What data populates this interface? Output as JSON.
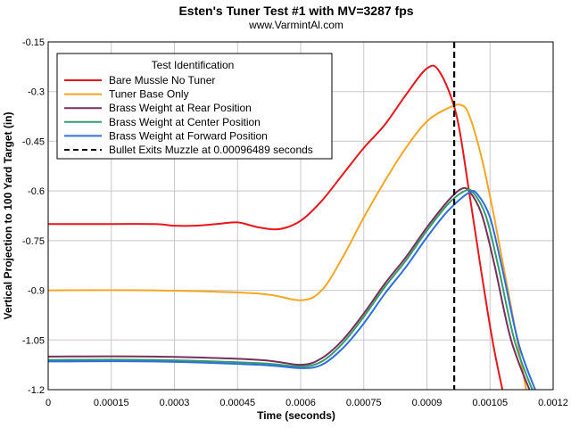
{
  "chart_data": {
    "type": "line",
    "title": "Esten's Tuner Test #1 with MV=3287 fps",
    "subtitle": "www.VarmintAl.com",
    "xlabel": "Time (seconds)",
    "ylabel": "Vertical Projection to 100 Yard Target (in)",
    "xlim": [
      0,
      0.0012
    ],
    "ylim": [
      -1.2,
      -0.15
    ],
    "x_ticks": [
      "0",
      "0.00015",
      "0.0003",
      "0.00045",
      "0.0006",
      "0.00075",
      "0.0009",
      "0.00105",
      "0.0012"
    ],
    "x_tick_values": [
      0,
      0.00015,
      0.0003,
      0.00045,
      0.0006,
      0.00075,
      0.0009,
      0.00105,
      0.0012
    ],
    "y_ticks": [
      "-0.15",
      "-0.3",
      "-0.45",
      "-0.6",
      "-0.75",
      "-0.9",
      "-1.05",
      "-1.2"
    ],
    "y_tick_values": [
      -0.15,
      -0.3,
      -0.45,
      -0.6,
      -0.75,
      -0.9,
      -1.05,
      -1.2
    ],
    "grid": true,
    "legend": {
      "title": "Test Identification",
      "placement": "top-left"
    },
    "series": [
      {
        "name": "Bare Mussle No Tuner",
        "color": "#e8161b",
        "x": [
          0,
          0.0001,
          0.00025,
          0.0003,
          0.00035,
          0.0004,
          0.00045,
          0.0005,
          0.00055,
          0.0006,
          0.00065,
          0.0007,
          0.00075,
          0.0008,
          0.00085,
          0.0009,
          0.00093,
          0.00097,
          0.001,
          0.00103,
          0.00106,
          0.0011
        ],
        "y": [
          -0.7,
          -0.7,
          -0.7,
          -0.705,
          -0.705,
          -0.7,
          -0.695,
          -0.71,
          -0.715,
          -0.69,
          -0.63,
          -0.55,
          -0.47,
          -0.4,
          -0.31,
          -0.23,
          -0.24,
          -0.37,
          -0.6,
          -0.85,
          -1.08,
          -1.32
        ]
      },
      {
        "name": "Tuner Base Only",
        "color": "#f5a623",
        "x": [
          0,
          0.00025,
          0.0005,
          0.0006,
          0.00065,
          0.0007,
          0.00075,
          0.0008,
          0.00085,
          0.0009,
          0.00095,
          0.00098,
          0.001,
          0.00103,
          0.00106,
          0.0011,
          0.00115
        ],
        "y": [
          -0.9,
          -0.9,
          -0.91,
          -0.93,
          -0.9,
          -0.8,
          -0.68,
          -0.57,
          -0.47,
          -0.39,
          -0.35,
          -0.34,
          -0.37,
          -0.5,
          -0.68,
          -0.95,
          -1.3
        ]
      },
      {
        "name": "Brass Weight at Rear Position",
        "color": "#7a2e5a",
        "x": [
          0,
          0.00025,
          0.0005,
          0.0006,
          0.00065,
          0.0007,
          0.00075,
          0.0008,
          0.00085,
          0.0009,
          0.00095,
          0.00098,
          0.001,
          0.00103,
          0.00106,
          0.0011,
          0.00115
        ],
        "y": [
          -1.1,
          -1.1,
          -1.11,
          -1.125,
          -1.105,
          -1.05,
          -0.97,
          -0.88,
          -0.8,
          -0.71,
          -0.63,
          -0.595,
          -0.6,
          -0.67,
          -0.82,
          -1.05,
          -1.22
        ]
      },
      {
        "name": "Brass Weight at Center Position",
        "color": "#2e9e6b",
        "x": [
          0,
          0.00025,
          0.0005,
          0.0006,
          0.00065,
          0.0007,
          0.00075,
          0.0008,
          0.00085,
          0.0009,
          0.00095,
          0.00099,
          0.00101,
          0.00104,
          0.00107,
          0.00111,
          0.00116
        ],
        "y": [
          -1.11,
          -1.11,
          -1.12,
          -1.13,
          -1.115,
          -1.06,
          -0.98,
          -0.89,
          -0.81,
          -0.72,
          -0.64,
          -0.6,
          -0.605,
          -0.675,
          -0.83,
          -1.06,
          -1.23
        ]
      },
      {
        "name": "Brass Weight at Forward Position",
        "color": "#2f6ee0",
        "x": [
          0,
          0.00025,
          0.0005,
          0.0006,
          0.00065,
          0.0007,
          0.00075,
          0.0008,
          0.00085,
          0.0009,
          0.00095,
          0.001,
          0.00102,
          0.00105,
          0.00108,
          0.00112,
          0.00117
        ],
        "y": [
          -1.115,
          -1.115,
          -1.125,
          -1.135,
          -1.125,
          -1.075,
          -1.0,
          -0.91,
          -0.83,
          -0.74,
          -0.66,
          -0.605,
          -0.61,
          -0.68,
          -0.84,
          -1.07,
          -1.24
        ]
      }
    ],
    "vline": {
      "name": "Bullet Exits Muzzle at 0.00096489 seconds",
      "x": 0.00096489,
      "color": "#000000",
      "dashed": true
    }
  }
}
